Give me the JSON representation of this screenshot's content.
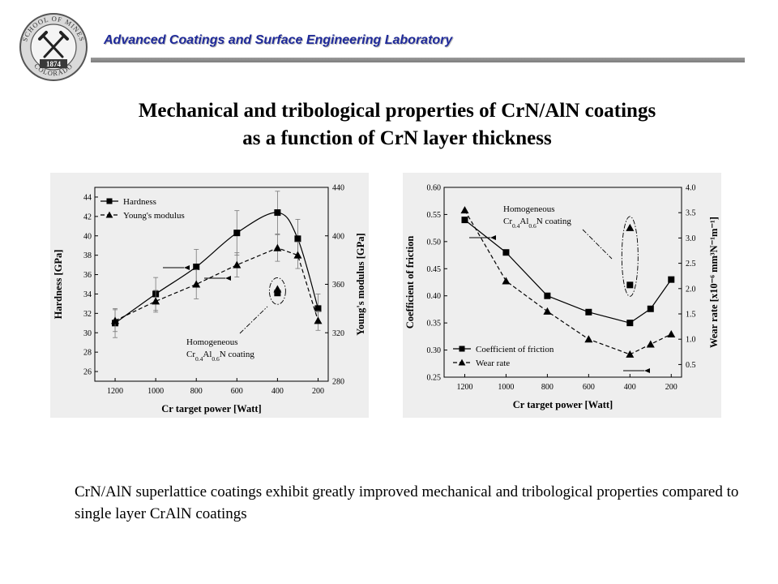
{
  "header": {
    "lab_name": "Advanced Coatings and Surface Engineering Laboratory",
    "logo": {
      "ring_top": "SCHOOL OF MINES",
      "ring_bottom": "COLORADO",
      "year": "1874",
      "icon": "crossed-hammers-icon"
    }
  },
  "title_lines": [
    "Mechanical and tribological properties of CrN/AlN coatings",
    "as a function of CrN layer thickness"
  ],
  "summary": "CrN/AlN superlattice coatings exhibit greatly improved mechanical and tribological properties compared to single layer CrAlN coatings",
  "colors": {
    "lab_title": "#1f2a9a",
    "rule": "#8a8a8a",
    "chart_bg": "#eeeeee",
    "ink": "#000000"
  },
  "chart_data": [
    {
      "type": "line",
      "xlabel": "Cr target power [Watt]",
      "x_ticks": [
        1200,
        1000,
        800,
        600,
        400,
        200
      ],
      "xlim": [
        1300,
        150
      ],
      "x_reversed": true,
      "ylabel": "Hardness [GPa]",
      "ylim": [
        25,
        45
      ],
      "y_ticks": [
        26,
        28,
        30,
        32,
        34,
        36,
        38,
        40,
        42,
        44
      ],
      "y2label": "Young's modulus [GPa]",
      "y2lim": [
        280,
        440
      ],
      "y2_ticks": [
        280,
        320,
        360,
        400,
        440
      ],
      "legend": "top-left",
      "grid": false,
      "series": [
        {
          "name": "Hardness",
          "axis": "left",
          "marker": "square",
          "line": "solid",
          "fit": "smooth",
          "x": [
            1200,
            1000,
            800,
            600,
            400,
            300,
            200
          ],
          "y": [
            31,
            34,
            36.8,
            40.3,
            42.4,
            39.7,
            32.5
          ],
          "err": [
            1.5,
            1.7,
            1.8,
            2.3,
            2.2,
            2.0,
            1.5
          ]
        },
        {
          "name": "Young's modulus",
          "axis": "right",
          "marker": "triangle",
          "line": "dashed",
          "x": [
            1200,
            1000,
            800,
            600,
            400,
            300,
            200
          ],
          "y": [
            330,
            346,
            360,
            376,
            390,
            384,
            330
          ],
          "err": [
            9,
            9,
            12,
            10,
            11,
            11,
            8
          ]
        }
      ],
      "homogeneous_points": [
        {
          "x": 400,
          "y": 34.1,
          "marker": "square",
          "axis": "left"
        },
        {
          "x": 400,
          "y": 356,
          "marker": "triangle",
          "axis": "right"
        }
      ],
      "annotation": {
        "line1": "Homogeneous",
        "prefix": "Cr",
        "sub1": "0.4",
        "mid": "Al",
        "sub2": "0.6",
        "suffix": "N coating"
      }
    },
    {
      "type": "line",
      "xlabel": "Cr target power [Watt]",
      "x_ticks": [
        1200,
        1000,
        800,
        600,
        400,
        200
      ],
      "xlim": [
        1300,
        150
      ],
      "x_reversed": true,
      "ylabel": "Coefficient of friction",
      "ylim": [
        0.25,
        0.6
      ],
      "y_ticks": [
        0.25,
        0.3,
        0.35,
        0.4,
        0.45,
        0.5,
        0.55,
        0.6
      ],
      "y2label": "Wear rate",
      "y2unit": "[x10⁻⁶ mm³N⁻¹m⁻¹]",
      "y2lim": [
        0.25,
        4.0
      ],
      "y2_ticks": [
        0.5,
        1.0,
        1.5,
        2.0,
        2.5,
        3.0,
        3.5,
        4.0
      ],
      "legend": "bottom-left",
      "grid": false,
      "series": [
        {
          "name": "Coefficient of friction",
          "axis": "left",
          "marker": "square",
          "line": "solid",
          "x": [
            1200,
            1000,
            800,
            600,
            400,
            300,
            200
          ],
          "y": [
            0.54,
            0.48,
            0.4,
            0.37,
            0.35,
            0.376,
            0.43
          ]
        },
        {
          "name": "Wear rate",
          "axis": "right",
          "marker": "triangle",
          "line": "dashed",
          "x": [
            1200,
            1000,
            800,
            600,
            400,
            300,
            200
          ],
          "y": [
            3.55,
            2.15,
            1.55,
            1.0,
            0.7,
            0.9,
            1.1
          ]
        }
      ],
      "homogeneous_points": [
        {
          "x": 400,
          "y": 0.42,
          "marker": "square",
          "axis": "left"
        },
        {
          "x": 400,
          "y": 3.2,
          "marker": "triangle",
          "axis": "right"
        }
      ],
      "annotation": {
        "line1": "Homogeneous",
        "prefix": "Cr",
        "sub1": "0.4",
        "mid": "Al",
        "sub2": "0.6",
        "suffix": "N coating"
      }
    }
  ]
}
